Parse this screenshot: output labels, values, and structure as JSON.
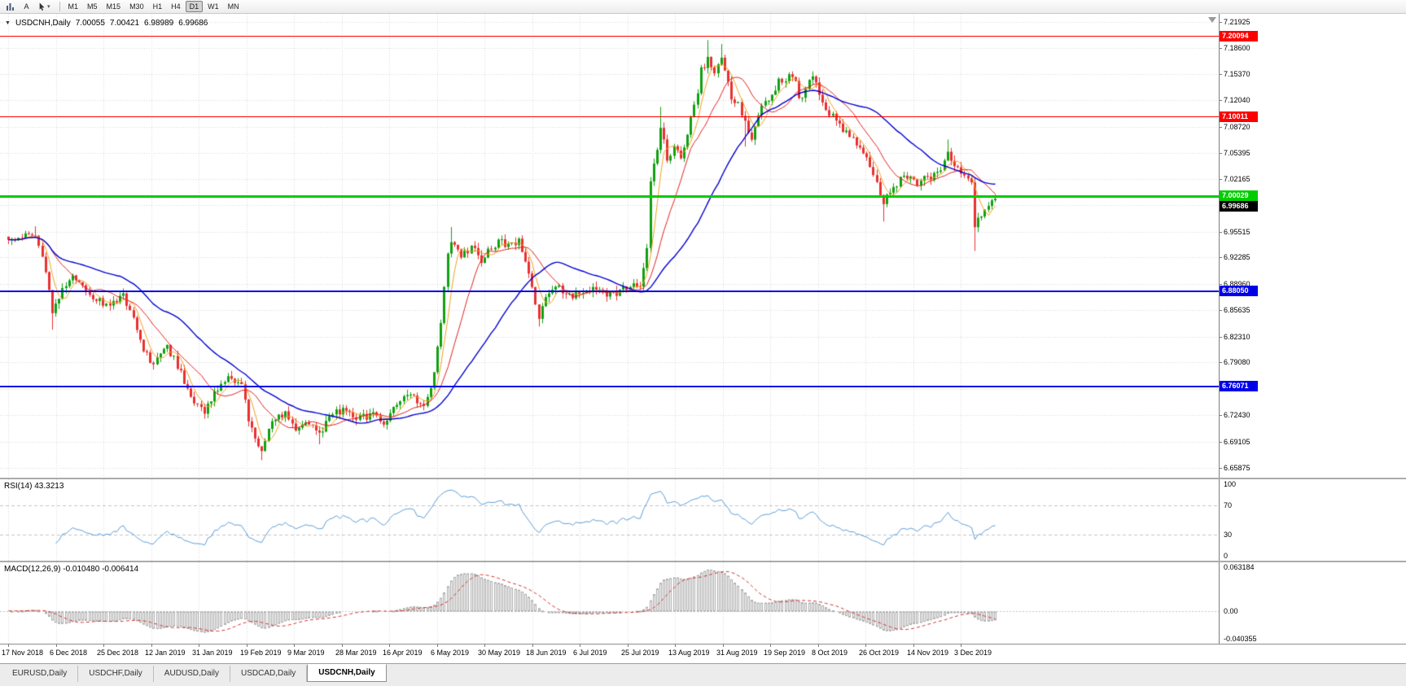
{
  "toolbar": {
    "tool_buttons": [
      {
        "name": "bar-chart-icon"
      },
      {
        "name": "text-tool",
        "label": "A"
      },
      {
        "name": "crosshair-tool"
      }
    ],
    "timeframes": [
      "M1",
      "M5",
      "M15",
      "M30",
      "H1",
      "H4",
      "D1",
      "W1",
      "MN"
    ],
    "active_timeframe": "D1"
  },
  "chart": {
    "symbol": "USDCNH,Daily",
    "open": "7.00055",
    "high": "7.00421",
    "low": "6.98989",
    "close": "6.99686",
    "price_axis": [
      "7.21925",
      "7.18600",
      "7.15370",
      "7.12040",
      "7.08720",
      "7.05395",
      "7.02165",
      "6.98840",
      "6.95515",
      "6.92285",
      "6.88960",
      "6.85635",
      "6.82310",
      "6.79080",
      "6.75755",
      "6.72430",
      "6.69105",
      "6.65875"
    ],
    "hlines": [
      {
        "label": "7.20094",
        "value": 7.20094,
        "color": "#FF0000",
        "thickness": 1
      },
      {
        "label": "7.10011",
        "value": 7.10011,
        "color": "#FF0000",
        "thickness": 1
      },
      {
        "label": "7.00029",
        "value": 7.00029,
        "color": "#00CC00",
        "thickness": 3
      },
      {
        "label": "6.88050",
        "value": 6.8805,
        "color": "#0000E8",
        "thickness": 2
      },
      {
        "label": "6.76071",
        "value": 6.76071,
        "color": "#0000E8",
        "thickness": 2
      }
    ],
    "current_price": {
      "label": "6.99686",
      "value": 6.99686,
      "color": "#000000"
    }
  },
  "indicators": {
    "rsi": {
      "label": "RSI(14) 43.3213",
      "value": 43.3213,
      "levels": [
        "100",
        "70",
        "30",
        "0"
      ],
      "line_color": "#5B9BD5"
    },
    "macd": {
      "label": "MACD(12,26,9) -0.010480 -0.006414",
      "main_value": "-0.010480",
      "signal_value": "-0.006414",
      "axis": [
        "0.063184",
        "0.00",
        "-0.040355"
      ],
      "histogram_color": "#ababab",
      "signal_color": "#D32F2F"
    }
  },
  "time_axis": {
    "dates": [
      "17 Nov 2018",
      "6 Dec 2018",
      "25 Dec 2018",
      "12 Jan 2019",
      "31 Jan 2019",
      "19 Feb 2019",
      "9 Mar 2019",
      "28 Mar 2019",
      "16 Apr 2019",
      "6 May 2019",
      "30 May 2019",
      "18 Jun 2019",
      "6 Jul 2019",
      "25 Jul 2019",
      "13 Aug 2019",
      "31 Aug 2019",
      "19 Sep 2019",
      "8 Oct 2019",
      "26 Oct 2019",
      "14 Nov 2019",
      "3 Dec 2019"
    ]
  },
  "tabs": [
    {
      "label": "EURUSD,Daily",
      "active": false
    },
    {
      "label": "USDCHF,Daily",
      "active": false
    },
    {
      "label": "AUDUSD,Daily",
      "active": false
    },
    {
      "label": "USDCAD,Daily",
      "active": false
    },
    {
      "label": "USDCNH,Daily",
      "active": true
    }
  ],
  "chart_data": {
    "type": "candlestick",
    "symbol": "USDCNH",
    "timeframe": "Daily",
    "count": 293,
    "price_range": {
      "top": 7.229,
      "bottom": 6.646
    },
    "colors": {
      "up": "#10A010",
      "down": "#E83030",
      "ma_fast": "#F0A020",
      "ma_mid": "#E02020",
      "ma_slow": "#0000D0"
    },
    "ma_periods": {
      "fast": 5,
      "mid": 13,
      "slow": 34
    },
    "close_waypoints": [
      [
        0,
        6.945
      ],
      [
        8,
        6.955
      ],
      [
        11,
        6.905
      ],
      [
        13,
        6.852
      ],
      [
        16,
        6.885
      ],
      [
        19,
        6.9
      ],
      [
        24,
        6.875
      ],
      [
        29,
        6.865
      ],
      [
        34,
        6.875
      ],
      [
        37,
        6.845
      ],
      [
        40,
        6.805
      ],
      [
        43,
        6.79
      ],
      [
        47,
        6.81
      ],
      [
        51,
        6.78
      ],
      [
        54,
        6.745
      ],
      [
        58,
        6.73
      ],
      [
        61,
        6.755
      ],
      [
        65,
        6.775
      ],
      [
        69,
        6.76
      ],
      [
        71,
        6.72
      ],
      [
        73,
        6.695
      ],
      [
        75,
        6.678
      ],
      [
        78,
        6.715
      ],
      [
        82,
        6.73
      ],
      [
        85,
        6.71
      ],
      [
        88,
        6.72
      ],
      [
        92,
        6.7
      ],
      [
        95,
        6.725
      ],
      [
        99,
        6.73
      ],
      [
        104,
        6.72
      ],
      [
        108,
        6.725
      ],
      [
        112,
        6.715
      ],
      [
        116,
        6.745
      ],
      [
        119,
        6.755
      ],
      [
        122,
        6.735
      ],
      [
        124,
        6.745
      ],
      [
        126,
        6.78
      ],
      [
        128,
        6.845
      ],
      [
        130,
        6.93
      ],
      [
        131,
        6.945
      ],
      [
        134,
        6.925
      ],
      [
        137,
        6.935
      ],
      [
        140,
        6.92
      ],
      [
        142,
        6.93
      ],
      [
        145,
        6.945
      ],
      [
        148,
        6.938
      ],
      [
        151,
        6.945
      ],
      [
        154,
        6.9
      ],
      [
        156,
        6.862
      ],
      [
        157,
        6.845
      ],
      [
        160,
        6.88
      ],
      [
        163,
        6.885
      ],
      [
        166,
        6.875
      ],
      [
        170,
        6.88
      ],
      [
        174,
        6.885
      ],
      [
        177,
        6.874
      ],
      [
        181,
        6.88
      ],
      [
        184,
        6.89
      ],
      [
        187,
        6.885
      ],
      [
        189,
        6.935
      ],
      [
        190,
        7.02
      ],
      [
        192,
        7.055
      ],
      [
        193,
        7.09
      ],
      [
        195,
        7.045
      ],
      [
        197,
        7.06
      ],
      [
        199,
        7.047
      ],
      [
        201,
        7.08
      ],
      [
        204,
        7.13
      ],
      [
        205,
        7.16
      ],
      [
        207,
        7.17
      ],
      [
        209,
        7.155
      ],
      [
        211,
        7.175
      ],
      [
        213,
        7.145
      ],
      [
        214,
        7.12
      ],
      [
        216,
        7.115
      ],
      [
        218,
        7.09
      ],
      [
        220,
        7.075
      ],
      [
        222,
        7.1
      ],
      [
        224,
        7.12
      ],
      [
        227,
        7.13
      ],
      [
        228,
        7.145
      ],
      [
        231,
        7.15
      ],
      [
        233,
        7.14
      ],
      [
        234,
        7.12
      ],
      [
        236,
        7.135
      ],
      [
        238,
        7.15
      ],
      [
        240,
        7.13
      ],
      [
        242,
        7.11
      ],
      [
        245,
        7.095
      ],
      [
        247,
        7.085
      ],
      [
        249,
        7.075
      ],
      [
        252,
        7.06
      ],
      [
        254,
        7.05
      ],
      [
        257,
        7.02
      ],
      [
        259,
        6.99
      ],
      [
        261,
        7.005
      ],
      [
        264,
        7.02
      ],
      [
        266,
        7.025
      ],
      [
        269,
        7.015
      ],
      [
        271,
        7.025
      ],
      [
        273,
        7.02
      ],
      [
        276,
        7.035
      ],
      [
        278,
        7.06
      ],
      [
        279,
        7.045
      ],
      [
        281,
        7.035
      ],
      [
        283,
        7.03
      ],
      [
        285,
        7.015
      ],
      [
        286,
        6.965
      ],
      [
        288,
        6.975
      ],
      [
        289,
        6.985
      ],
      [
        292,
        6.99686
      ]
    ],
    "wick_lows": [
      [
        13,
        6.832
      ],
      [
        75,
        6.668
      ],
      [
        92,
        6.688
      ],
      [
        157,
        6.836
      ],
      [
        218,
        7.062
      ],
      [
        259,
        6.968
      ],
      [
        286,
        6.931
      ]
    ],
    "wick_highs": [
      [
        8,
        6.962
      ],
      [
        131,
        6.961
      ],
      [
        193,
        7.112
      ],
      [
        207,
        7.196
      ],
      [
        211,
        7.191
      ],
      [
        238,
        7.156
      ],
      [
        278,
        7.071
      ]
    ]
  }
}
